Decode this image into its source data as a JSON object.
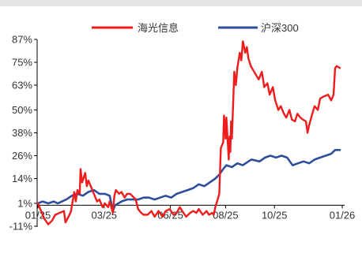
{
  "chart_data": {
    "type": "line",
    "title": "",
    "xlabel": "",
    "ylabel": "",
    "y_unit": "%",
    "ylim": [
      -11,
      87
    ],
    "y_ticks": [
      "87%",
      "75%",
      "63%",
      "50%",
      "38%",
      "26%",
      "14%",
      "1%",
      "-11%"
    ],
    "y_tick_values": [
      87,
      75,
      63,
      50,
      38,
      26,
      14,
      1,
      -11
    ],
    "x_ticks": [
      "01/25",
      "03/25",
      "06/25",
      "08/25",
      "10/25",
      "01/26"
    ],
    "x_tick_values": [
      "2025-01-02",
      "2025-03-27",
      "2025-06-19",
      "2025-08-28",
      "2025-10-29",
      "2026-01-23"
    ],
    "xlim": [
      "2025-01-01",
      "2026-01-26"
    ],
    "grid": false,
    "legend_position": "top-center",
    "series": [
      {
        "name": "海光信息",
        "color": "#ee1c1c",
        "points": [
          [
            "2025-01-02",
            1
          ],
          [
            "2025-01-06",
            -3
          ],
          [
            "2025-01-10",
            -7
          ],
          [
            "2025-01-15",
            -10
          ],
          [
            "2025-01-20",
            -8
          ],
          [
            "2025-01-24",
            -5
          ],
          [
            "2025-02-04",
            -3
          ],
          [
            "2025-02-06",
            -9
          ],
          [
            "2025-02-11",
            -5
          ],
          [
            "2025-02-13",
            -3
          ],
          [
            "2025-02-17",
            7
          ],
          [
            "2025-02-19",
            2
          ],
          [
            "2025-02-21",
            8
          ],
          [
            "2025-02-24",
            6
          ],
          [
            "2025-02-25",
            19
          ],
          [
            "2025-02-27",
            12
          ],
          [
            "2025-03-03",
            17
          ],
          [
            "2025-03-05",
            10
          ],
          [
            "2025-03-07",
            13
          ],
          [
            "2025-03-11",
            9
          ],
          [
            "2025-03-14",
            6
          ],
          [
            "2025-03-18",
            2
          ],
          [
            "2025-03-21",
            3
          ],
          [
            "2025-03-25",
            -1
          ],
          [
            "2025-03-28",
            1
          ],
          [
            "2025-04-01",
            -1
          ],
          [
            "2025-04-03",
            2
          ],
          [
            "2025-04-07",
            -4
          ],
          [
            "2025-04-09",
            5
          ],
          [
            "2025-04-11",
            8
          ],
          [
            "2025-04-15",
            6
          ],
          [
            "2025-04-18",
            7
          ],
          [
            "2025-04-22",
            4
          ],
          [
            "2025-04-25",
            6
          ],
          [
            "2025-04-29",
            6
          ],
          [
            "2025-05-06",
            3
          ],
          [
            "2025-05-09",
            -2
          ],
          [
            "2025-05-13",
            -4
          ],
          [
            "2025-05-16",
            -5
          ],
          [
            "2025-05-21",
            -5
          ],
          [
            "2025-05-26",
            -3
          ],
          [
            "2025-05-30",
            -6
          ],
          [
            "2025-06-04",
            -3
          ],
          [
            "2025-06-09",
            -6
          ],
          [
            "2025-06-13",
            -3
          ],
          [
            "2025-06-18",
            -2
          ],
          [
            "2025-06-23",
            -5
          ],
          [
            "2025-06-27",
            -4
          ],
          [
            "2025-07-01",
            -1
          ],
          [
            "2025-07-04",
            -3
          ],
          [
            "2025-07-09",
            -6
          ],
          [
            "2025-07-14",
            -4
          ],
          [
            "2025-07-18",
            -3
          ],
          [
            "2025-07-22",
            -4
          ],
          [
            "2025-07-25",
            -2
          ],
          [
            "2025-07-30",
            -5
          ],
          [
            "2025-08-04",
            -3
          ],
          [
            "2025-08-07",
            -5
          ],
          [
            "2025-08-11",
            -4
          ],
          [
            "2025-08-13",
            -5
          ],
          [
            "2025-08-15",
            -1
          ],
          [
            "2025-08-18",
            3
          ],
          [
            "2025-08-20",
            6
          ],
          [
            "2025-08-22",
            30
          ],
          [
            "2025-08-25",
            33
          ],
          [
            "2025-08-26",
            47
          ],
          [
            "2025-08-27",
            42
          ],
          [
            "2025-08-28",
            35
          ],
          [
            "2025-08-29",
            46
          ],
          [
            "2025-09-01",
            24
          ],
          [
            "2025-09-02",
            36
          ],
          [
            "2025-09-03",
            28
          ],
          [
            "2025-09-04",
            44
          ],
          [
            "2025-09-05",
            35
          ],
          [
            "2025-09-08",
            70
          ],
          [
            "2025-09-10",
            63
          ],
          [
            "2025-09-12",
            72
          ],
          [
            "2025-09-15",
            80
          ],
          [
            "2025-09-17",
            76
          ],
          [
            "2025-09-19",
            86
          ],
          [
            "2025-09-22",
            80
          ],
          [
            "2025-09-24",
            83
          ],
          [
            "2025-09-26",
            77
          ],
          [
            "2025-09-29",
            73
          ],
          [
            "2025-10-09",
            66
          ],
          [
            "2025-10-13",
            70
          ],
          [
            "2025-10-16",
            62
          ],
          [
            "2025-10-20",
            64
          ],
          [
            "2025-10-23",
            58
          ],
          [
            "2025-10-27",
            62
          ],
          [
            "2025-10-30",
            55
          ],
          [
            "2025-11-03",
            50
          ],
          [
            "2025-11-06",
            52
          ],
          [
            "2025-11-10",
            48
          ],
          [
            "2025-11-13",
            46
          ],
          [
            "2025-11-17",
            50
          ],
          [
            "2025-11-20",
            45
          ],
          [
            "2025-11-24",
            44
          ],
          [
            "2025-11-27",
            48
          ],
          [
            "2025-12-01",
            46
          ],
          [
            "2025-12-04",
            45
          ],
          [
            "2025-12-08",
            44
          ],
          [
            "2025-12-10",
            38
          ],
          [
            "2025-12-12",
            42
          ],
          [
            "2025-12-16",
            48
          ],
          [
            "2025-12-19",
            52
          ],
          [
            "2025-12-23",
            50
          ],
          [
            "2025-12-26",
            56
          ],
          [
            "2025-12-30",
            57
          ],
          [
            "2026-01-05",
            58
          ],
          [
            "2026-01-09",
            55
          ],
          [
            "2026-01-12",
            58
          ],
          [
            "2026-01-14",
            72
          ],
          [
            "2026-01-16",
            73
          ],
          [
            "2026-01-20",
            72
          ]
        ]
      },
      {
        "name": "沪深300",
        "color": "#2e4d9a",
        "points": [
          [
            "2025-01-02",
            1
          ],
          [
            "2025-01-08",
            2
          ],
          [
            "2025-01-15",
            1
          ],
          [
            "2025-01-22",
            2
          ],
          [
            "2025-01-27",
            1
          ],
          [
            "2025-02-07",
            3
          ],
          [
            "2025-02-14",
            5
          ],
          [
            "2025-02-21",
            6
          ],
          [
            "2025-02-28",
            5
          ],
          [
            "2025-03-07",
            7
          ],
          [
            "2025-03-14",
            8
          ],
          [
            "2025-03-21",
            6
          ],
          [
            "2025-03-28",
            6
          ],
          [
            "2025-04-03",
            5
          ],
          [
            "2025-04-07",
            -3
          ],
          [
            "2025-04-10",
            0
          ],
          [
            "2025-04-14",
            1
          ],
          [
            "2025-04-18",
            2
          ],
          [
            "2025-04-25",
            3
          ],
          [
            "2025-05-09",
            3
          ],
          [
            "2025-05-16",
            4
          ],
          [
            "2025-05-23",
            4
          ],
          [
            "2025-05-30",
            3
          ],
          [
            "2025-06-06",
            4
          ],
          [
            "2025-06-13",
            5
          ],
          [
            "2025-06-20",
            4
          ],
          [
            "2025-06-27",
            6
          ],
          [
            "2025-07-04",
            7
          ],
          [
            "2025-07-11",
            8
          ],
          [
            "2025-07-18",
            9
          ],
          [
            "2025-07-25",
            11
          ],
          [
            "2025-08-01",
            10
          ],
          [
            "2025-08-08",
            12
          ],
          [
            "2025-08-15",
            14
          ],
          [
            "2025-08-20",
            16
          ],
          [
            "2025-08-25",
            19
          ],
          [
            "2025-08-29",
            21
          ],
          [
            "2025-09-05",
            20
          ],
          [
            "2025-09-12",
            22
          ],
          [
            "2025-09-19",
            21
          ],
          [
            "2025-09-26",
            23
          ],
          [
            "2025-09-30",
            24
          ],
          [
            "2025-10-10",
            23
          ],
          [
            "2025-10-17",
            25
          ],
          [
            "2025-10-24",
            26
          ],
          [
            "2025-10-31",
            25
          ],
          [
            "2025-11-07",
            26
          ],
          [
            "2025-11-14",
            25
          ],
          [
            "2025-11-21",
            21
          ],
          [
            "2025-11-28",
            22
          ],
          [
            "2025-12-05",
            23
          ],
          [
            "2025-12-12",
            22
          ],
          [
            "2025-12-19",
            24
          ],
          [
            "2025-12-26",
            25
          ],
          [
            "2026-01-02",
            26
          ],
          [
            "2026-01-09",
            27
          ],
          [
            "2026-01-14",
            29
          ],
          [
            "2026-01-20",
            29
          ]
        ]
      }
    ]
  }
}
